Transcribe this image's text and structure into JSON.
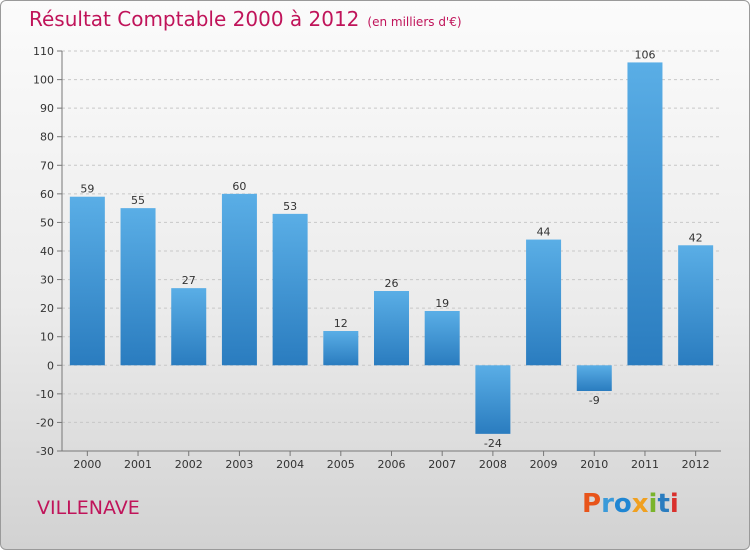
{
  "header": {
    "title": "Résultat Comptable 2000 à 2012",
    "subtitle": "(en milliers d'€)"
  },
  "footer": {
    "city": "VILLENAVE",
    "logo": "Proxiti"
  },
  "colors": {
    "accent": "#c0145a",
    "bar_top": "#5aaee6",
    "bar_bottom": "#2a7cbf",
    "logo_letters": [
      "#e8541a",
      "#3a9ad9",
      "#1f86d3",
      "#f0a020",
      "#7ab42c",
      "#2a7cbf",
      "#d9302c"
    ]
  },
  "chart_data": {
    "type": "bar",
    "title": "Résultat Comptable 2000 à 2012",
    "subtitle": "(en milliers d'€)",
    "xlabel": "",
    "ylabel": "",
    "categories": [
      "2000",
      "2001",
      "2002",
      "2003",
      "2004",
      "2005",
      "2006",
      "2007",
      "2008",
      "2009",
      "2010",
      "2011",
      "2012"
    ],
    "values": [
      59,
      55,
      27,
      60,
      53,
      12,
      26,
      19,
      -24,
      44,
      -9,
      106,
      42
    ],
    "ylim": [
      -30,
      110
    ],
    "yticks": [
      -30,
      -20,
      -10,
      0,
      10,
      20,
      30,
      40,
      50,
      60,
      70,
      80,
      90,
      100,
      110
    ],
    "grid": true
  }
}
